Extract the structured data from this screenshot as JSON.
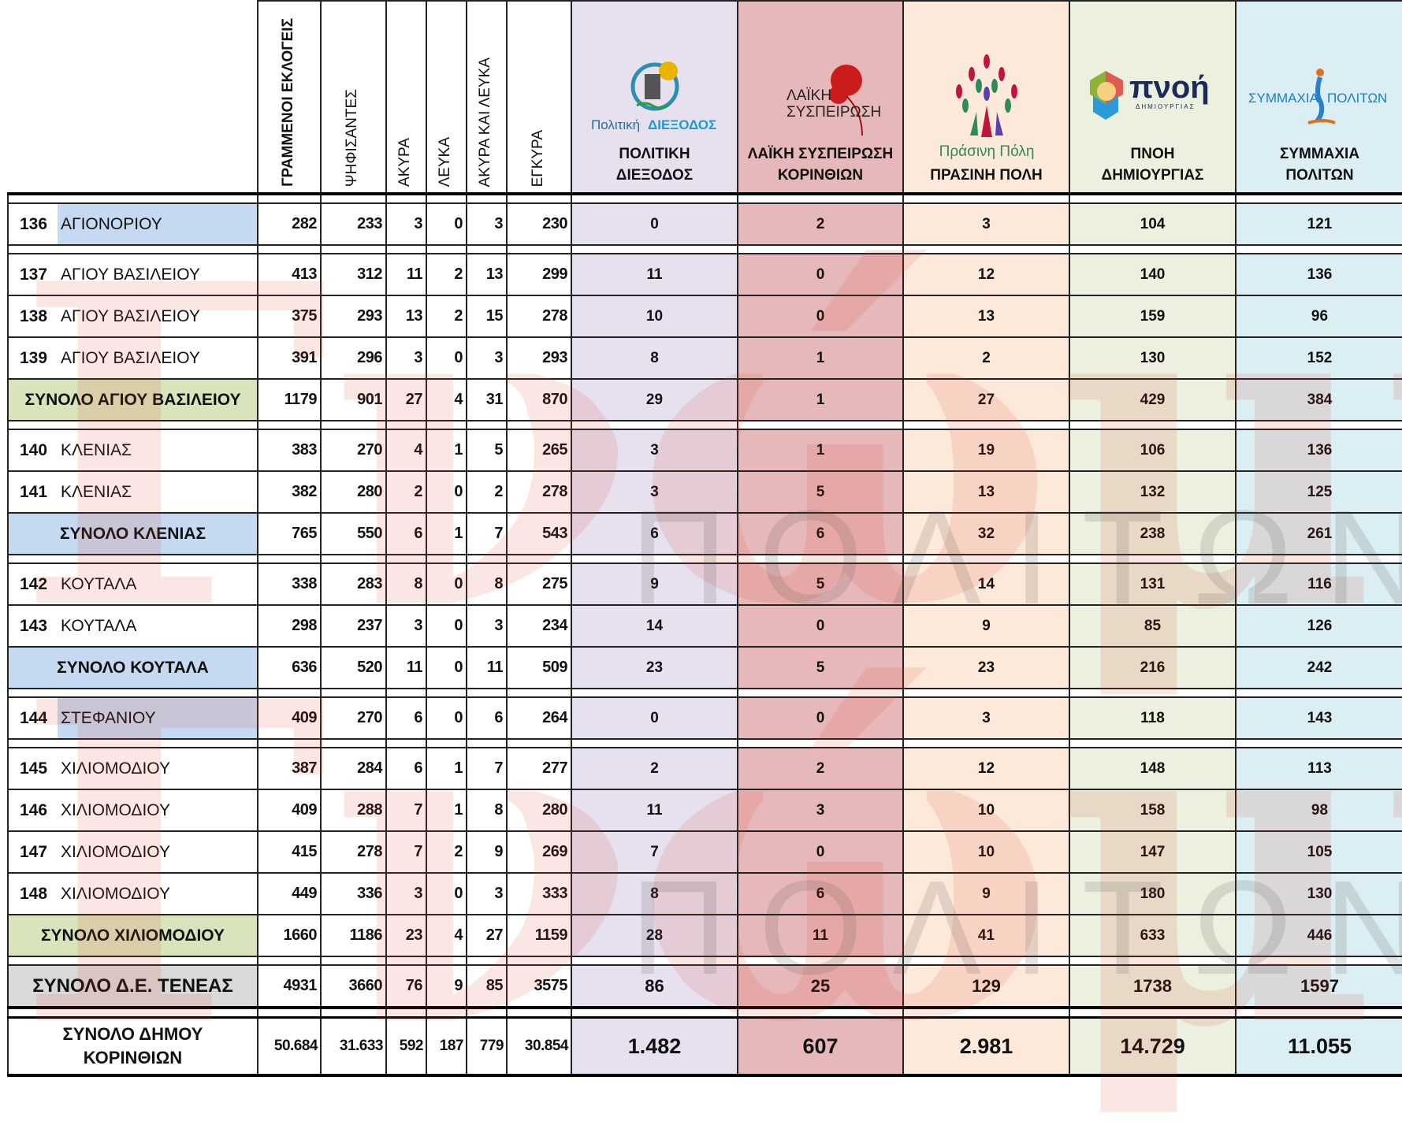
{
  "header": {
    "columns": [
      "ΓΡΑΜΜΕΝΟΙ ΕΚΛΟΓΕΙΣ",
      "ΨΗΦΙΣΑΝΤΕΣ",
      "ΑΚΥΡΑ",
      "ΛΕΥΚΑ",
      "ΑΚΥΡΑ ΚΑΙ ΛΕΥΚΑ",
      "ΕΓΚΥΡΑ"
    ],
    "parties": [
      {
        "line1": "ΠΟΛΙΤΙΚΗ",
        "line2": "ΔΙΕΞΟΔΟΣ",
        "logo_text_a": "Πολιτική",
        "logo_text_b": "ΔΙΕΞΟΔΟΣ",
        "color": "#e6e0ef"
      },
      {
        "line1": "ΛΑΪΚΗ ΣΥΣΠΕΙΡΩΣΗ",
        "line2": "ΚΟΡΙΝΘΙΩΝ",
        "logo_text_a": "ΛΑΪΚΗ",
        "logo_text_b": "ΣΥΣΠΕΙΡΩΣΗ",
        "color": "#e7b8b9"
      },
      {
        "line1": "",
        "line2": "ΠΡΑΣΙΝΗ ΠΟΛΗ",
        "logo_text_a": "Πράσινη Πόλη",
        "logo_text_b": "",
        "color": "#fde9d9"
      },
      {
        "line1": "ΠΝΟΗ",
        "line2": "ΔΗΜΙΟΥΡΓΙΑΣ",
        "logo_text_a": "πνοή",
        "logo_text_b": "ΔΗΜΙΟΥΡΓΙΑΣ",
        "color": "#ebf1de"
      },
      {
        "line1": "ΣΥΜΜΑΧΙΑ",
        "line2": "ΠΟΛΙΤΩΝ",
        "logo_text_a": "ΣΥΜΜΑΧΙΑ",
        "logo_text_b": "ΠΟΛΙΤΩΝ",
        "color": "#dbeef3"
      }
    ]
  },
  "rows": [
    {
      "type": "station",
      "no": "136",
      "name": "ΑΓΙΟΝΟΡΙΟΥ",
      "hl": "blue",
      "stats": [
        "282",
        "233",
        "3",
        "0",
        "3",
        "230"
      ],
      "votes": [
        "0",
        "2",
        "3",
        "104",
        "121"
      ]
    },
    {
      "type": "spacer"
    },
    {
      "type": "station",
      "no": "137",
      "name": "ΑΓΙΟΥ ΒΑΣΙΛΕΙΟΥ",
      "stats": [
        "413",
        "312",
        "11",
        "2",
        "13",
        "299"
      ],
      "votes": [
        "11",
        "0",
        "12",
        "140",
        "136"
      ]
    },
    {
      "type": "station",
      "no": "138",
      "name": "ΑΓΙΟΥ ΒΑΣΙΛΕΙΟΥ",
      "stats": [
        "375",
        "293",
        "13",
        "2",
        "15",
        "278"
      ],
      "votes": [
        "10",
        "0",
        "13",
        "159",
        "96"
      ]
    },
    {
      "type": "station",
      "no": "139",
      "name": "ΑΓΙΟΥ ΒΑΣΙΛΕΙΟΥ",
      "stats": [
        "391",
        "296",
        "3",
        "0",
        "3",
        "293"
      ],
      "votes": [
        "8",
        "1",
        "2",
        "130",
        "152"
      ]
    },
    {
      "type": "subtotal",
      "name": "ΣΥΝΟΛΟ ΑΓΙΟΥ ΒΑΣΙΛΕΙΟΥ",
      "hl": "green",
      "stats": [
        "1179",
        "901",
        "27",
        "4",
        "31",
        "870"
      ],
      "votes": [
        "29",
        "1",
        "27",
        "429",
        "384"
      ]
    },
    {
      "type": "spacer"
    },
    {
      "type": "station",
      "no": "140",
      "name": "ΚΛΕΝΙΑΣ",
      "stats": [
        "383",
        "270",
        "4",
        "1",
        "5",
        "265"
      ],
      "votes": [
        "3",
        "1",
        "19",
        "106",
        "136"
      ]
    },
    {
      "type": "station",
      "no": "141",
      "name": "ΚΛΕΝΙΑΣ",
      "stats": [
        "382",
        "280",
        "2",
        "0",
        "2",
        "278"
      ],
      "votes": [
        "3",
        "5",
        "13",
        "132",
        "125"
      ]
    },
    {
      "type": "subtotal",
      "name": "ΣΥΝΟΛΟ ΚΛΕΝΙΑΣ",
      "hl": "blue",
      "stats": [
        "765",
        "550",
        "6",
        "1",
        "7",
        "543"
      ],
      "votes": [
        "6",
        "6",
        "32",
        "238",
        "261"
      ]
    },
    {
      "type": "spacer"
    },
    {
      "type": "station",
      "no": "142",
      "name": "ΚΟΥΤΑΛΑ",
      "stats": [
        "338",
        "283",
        "8",
        "0",
        "8",
        "275"
      ],
      "votes": [
        "9",
        "5",
        "14",
        "131",
        "116"
      ]
    },
    {
      "type": "station",
      "no": "143",
      "name": "ΚΟΥΤΑΛΑ",
      "stats": [
        "298",
        "237",
        "3",
        "0",
        "3",
        "234"
      ],
      "votes": [
        "14",
        "0",
        "9",
        "85",
        "126"
      ]
    },
    {
      "type": "subtotal",
      "name": "ΣΥΝΟΛΟ ΚΟΥΤΑΛΑ",
      "hl": "blue",
      "stats": [
        "636",
        "520",
        "11",
        "0",
        "11",
        "509"
      ],
      "votes": [
        "23",
        "5",
        "23",
        "216",
        "242"
      ]
    },
    {
      "type": "spacer"
    },
    {
      "type": "station",
      "no": "144",
      "name": "ΣΤΕΦΑΝΙΟΥ",
      "hl": "blue",
      "stats": [
        "409",
        "270",
        "6",
        "0",
        "6",
        "264"
      ],
      "votes": [
        "0",
        "0",
        "3",
        "118",
        "143"
      ]
    },
    {
      "type": "spacer"
    },
    {
      "type": "station",
      "no": "145",
      "name": "ΧΙΛΙΟΜΟΔΙΟΥ",
      "stats": [
        "387",
        "284",
        "6",
        "1",
        "7",
        "277"
      ],
      "votes": [
        "2",
        "2",
        "12",
        "148",
        "113"
      ]
    },
    {
      "type": "station",
      "no": "146",
      "name": "ΧΙΛΙΟΜΟΔΙΟΥ",
      "stats": [
        "409",
        "288",
        "7",
        "1",
        "8",
        "280"
      ],
      "votes": [
        "11",
        "3",
        "10",
        "158",
        "98"
      ]
    },
    {
      "type": "station",
      "no": "147",
      "name": "ΧΙΛΙΟΜΟΔΙΟΥ",
      "stats": [
        "415",
        "278",
        "7",
        "2",
        "9",
        "269"
      ],
      "votes": [
        "7",
        "0",
        "10",
        "147",
        "105"
      ]
    },
    {
      "type": "station",
      "no": "148",
      "name": "ΧΙΛΙΟΜΟΔΙΟΥ",
      "stats": [
        "449",
        "336",
        "3",
        "0",
        "3",
        "333"
      ],
      "votes": [
        "8",
        "6",
        "9",
        "180",
        "130"
      ]
    },
    {
      "type": "subtotal",
      "name": "ΣΥΝΟΛΟ ΧΙΛΙΟΜΟΔΙΟΥ",
      "hl": "green",
      "stats": [
        "1660",
        "1186",
        "23",
        "4",
        "27",
        "1159"
      ],
      "votes": [
        "28",
        "11",
        "41",
        "633",
        "446"
      ]
    },
    {
      "type": "spacer"
    },
    {
      "type": "subtotal",
      "name": "ΣΥΝΟΛΟ Δ.Ε. ΤΕΝΕΑΣ",
      "hl": "grey",
      "extra": "tenea",
      "stats": [
        "4931",
        "3660",
        "76",
        "9",
        "85",
        "3575"
      ],
      "votes": [
        "86",
        "25",
        "129",
        "1738",
        "1597"
      ]
    },
    {
      "type": "spacer",
      "thick": true
    },
    {
      "type": "total",
      "name_line1": "ΣΥΝΟΛΟ ΔΗΜΟΥ",
      "name_line2": "ΚΟΡΙΝΘΙΩΝ",
      "stats": [
        "50.684",
        "31.633",
        "592",
        "187",
        "779",
        "30.854"
      ],
      "votes": [
        "1.482",
        "607",
        "2.981",
        "14.729",
        "11.055"
      ]
    }
  ],
  "watermark": {
    "top": "Γνώμη",
    "bottom": "ΠΟΛΙΤΩΝ"
  }
}
